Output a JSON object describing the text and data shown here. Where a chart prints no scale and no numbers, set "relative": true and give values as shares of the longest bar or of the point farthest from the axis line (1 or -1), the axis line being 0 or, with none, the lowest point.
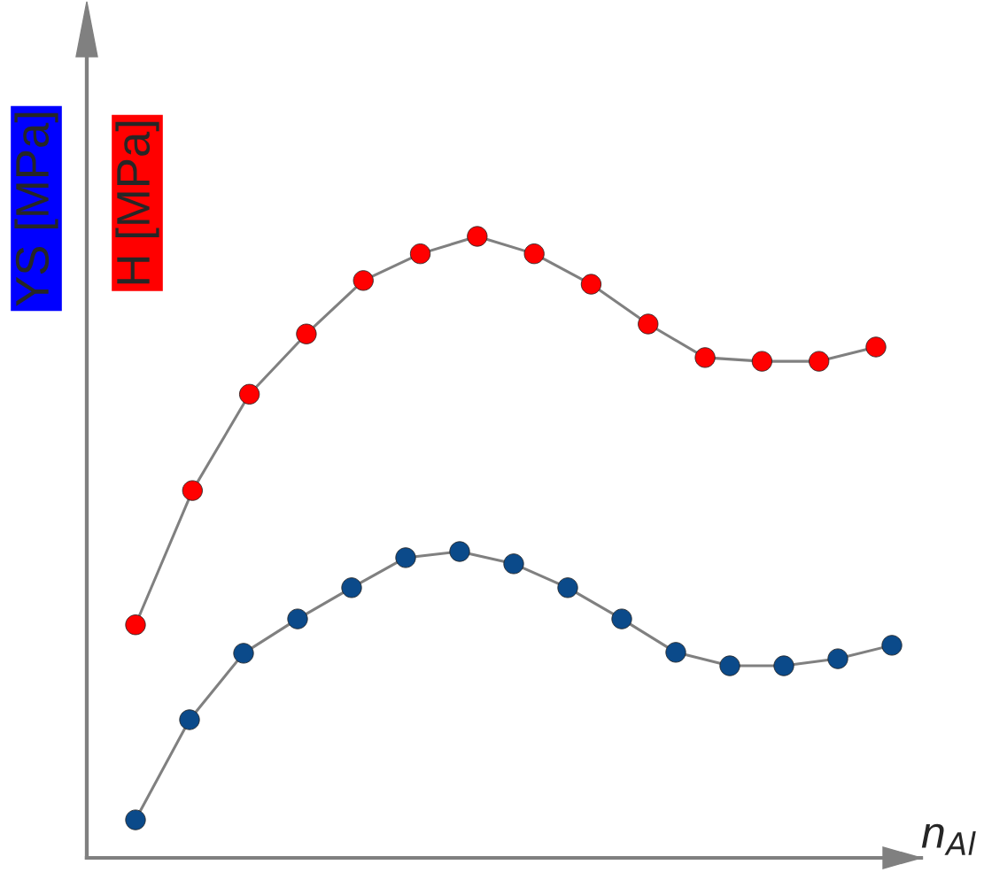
{
  "chart_data": [
    {
      "type": "line",
      "relative": true,
      "ylabel": "YS [MPa]",
      "marker": "circle",
      "grid": false,
      "categories": [
        null,
        null,
        null,
        null,
        null,
        null,
        null,
        null,
        null,
        null,
        null,
        null,
        null,
        null,
        null
      ],
      "series": [
        {
          "color": "#808080",
          "colors": [
            "#0b4a8a",
            "#0b4a8a",
            "#0b4a8a",
            "#0b4a8a",
            "#0b4a8a",
            "#0b4a8a",
            "#0b4a8a",
            "#0b4a8a",
            "#0b4a8a",
            "#0b4a8a",
            "#0b4a8a",
            "#0b4a8a",
            "#0b4a8a",
            "#0b4a8a",
            "#0b4a8a"
          ],
          "values": [
            0.124,
            0.451,
            0.668,
            0.78,
            0.882,
            0.98,
            1.0,
            0.96,
            0.882,
            0.78,
            0.671,
            0.627,
            0.627,
            0.65,
            0.694
          ]
        }
      ]
    },
    {
      "type": "line",
      "relative": true,
      "ylabel": "H [MPa]",
      "xlabel": "n$_{Al}$",
      "marker": "circle",
      "grid": false,
      "categories": [
        null,
        null,
        null,
        null,
        null,
        null,
        null,
        null,
        null,
        null,
        null,
        null,
        null,
        null
      ],
      "series": [
        {
          "color": "#808080",
          "colors": [
            "#ff0000",
            "#ff0000",
            "#ff0000",
            "#ff0000",
            "#ff0000",
            "#ff0000",
            "#ff0000",
            "#ff0000",
            "#ff0000",
            "#ff0000",
            "#ff0000",
            "#ff0000",
            "#ff0000",
            "#ff0000"
          ],
          "values": [
            0.375,
            0.591,
            0.746,
            0.843,
            0.929,
            0.972,
            1.0,
            0.972,
            0.923,
            0.859,
            0.805,
            0.799,
            0.799,
            0.822
          ]
        }
      ]
    }
  ]
}
